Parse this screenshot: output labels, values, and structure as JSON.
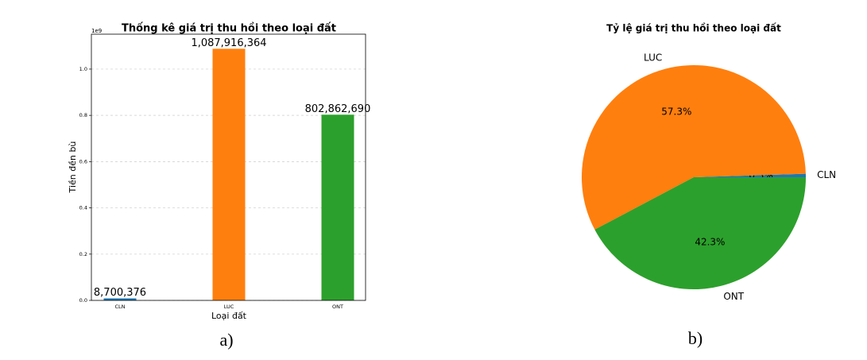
{
  "chart_data": [
    {
      "type": "bar",
      "title": "Thống kê giá trị thu hồi theo loại đất",
      "x_label": "Loại đất",
      "y_label": "Tiền đền bù",
      "y_offset_label": "1e9",
      "caption": "a)",
      "categories": [
        "CLN",
        "LUC",
        "ONT"
      ],
      "values": [
        8700376,
        1087916364,
        802862690
      ],
      "value_labels": [
        "8,700,376",
        "1,087,916,364",
        "802,862,690"
      ],
      "colors": [
        "#1f77b4",
        "#ff7f0e",
        "#2ca02c"
      ],
      "ylim": [
        0,
        1151000000
      ],
      "yticks": [
        {
          "value": 0,
          "label": "0.0"
        },
        {
          "value": 200000000,
          "label": "0.2"
        },
        {
          "value": 400000000,
          "label": "0.4"
        },
        {
          "value": 600000000,
          "label": "0.6"
        },
        {
          "value": 800000000,
          "label": "0.8"
        },
        {
          "value": 1000000000,
          "label": "1.0"
        }
      ],
      "grid": true
    },
    {
      "type": "pie",
      "title": "Tỷ lệ giá trị thu hồi theo loại đất",
      "caption": "b)",
      "categories": [
        "CLN",
        "LUC",
        "ONT"
      ],
      "values": [
        0.5,
        57.3,
        42.3
      ],
      "value_labels": [
        "0.5%",
        "57.3%",
        "42.3%"
      ],
      "colors": [
        "#1f77b4",
        "#ff7f0e",
        "#2ca02c"
      ]
    }
  ]
}
